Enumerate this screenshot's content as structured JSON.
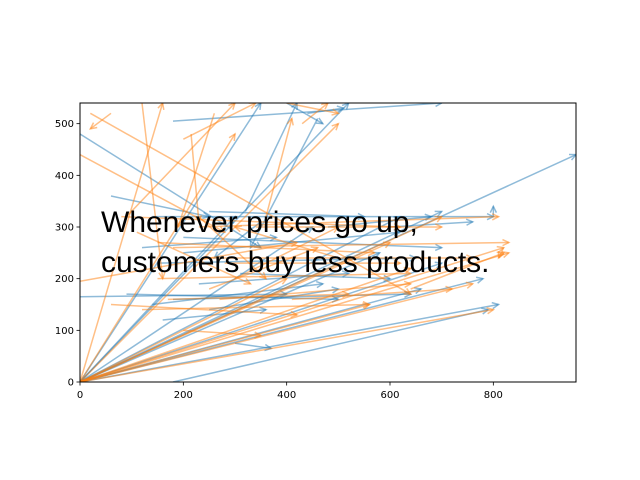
{
  "chart_data": {
    "type": "line",
    "title": "",
    "xlabel": "",
    "ylabel": "",
    "xlim": [
      0,
      960
    ],
    "ylim": [
      0,
      540
    ],
    "x_ticks": [
      0,
      200,
      400,
      600,
      800
    ],
    "y_ticks": [
      0,
      100,
      200,
      300,
      400,
      500
    ],
    "grid": false,
    "annotation": {
      "lines": [
        "Whenever prices go up,",
        "customers buy less products."
      ],
      "color": "#000000"
    },
    "series": [
      {
        "color": "#1f77b4",
        "alpha": 0.5,
        "segments": [
          [
            [
              0,
              0
            ],
            [
              960,
              440
            ]
          ],
          [
            [
              0,
              0
            ],
            [
              520,
              540
            ]
          ],
          [
            [
              0,
              0
            ],
            [
              780,
              200
            ]
          ],
          [
            [
              0,
              0
            ],
            [
              700,
              330
            ]
          ],
          [
            [
              0,
              0
            ],
            [
              810,
              150
            ]
          ],
          [
            [
              0,
              0
            ],
            [
              350,
              540
            ]
          ],
          [
            [
              0,
              0
            ],
            [
              620,
              320
            ]
          ],
          [
            [
              0,
              0
            ],
            [
              660,
              180
            ]
          ],
          [
            [
              0,
              0
            ],
            [
              580,
              250
            ]
          ],
          [
            [
              0,
              0
            ],
            [
              700,
              230
            ]
          ],
          [
            [
              0,
              0
            ],
            [
              450,
              300
            ]
          ],
          [
            [
              0,
              0
            ],
            [
              300,
              320
            ]
          ],
          [
            [
              180,
              0
            ],
            [
              790,
              140
            ]
          ],
          [
            [
              0,
              165
            ],
            [
              400,
              170
            ]
          ],
          [
            [
              0,
              480
            ],
            [
              350,
              260
            ]
          ],
          [
            [
              180,
              505
            ],
            [
              700,
              540
            ]
          ],
          [
            [
              60,
              360
            ],
            [
              250,
              320
            ]
          ],
          [
            [
              140,
              320
            ],
            [
              800,
              320
            ]
          ],
          [
            [
              200,
              280
            ],
            [
              700,
              260
            ]
          ],
          [
            [
              150,
              230
            ],
            [
              650,
              240
            ]
          ],
          [
            [
              180,
              160
            ],
            [
              640,
              170
            ]
          ],
          [
            [
              400,
              540
            ],
            [
              470,
              500
            ]
          ],
          [
            [
              440,
              520
            ],
            [
              510,
              530
            ]
          ],
          [
            [
              320,
              330
            ],
            [
              420,
              540
            ]
          ],
          [
            [
              250,
              140
            ],
            [
              500,
              180
            ]
          ],
          [
            [
              460,
              510
            ],
            [
              330,
              260
            ]
          ],
          [
            [
              800,
              320
            ],
            [
              800,
              340
            ]
          ],
          [
            [
              230,
              190
            ],
            [
              520,
              210
            ]
          ],
          [
            [
              310,
              210
            ],
            [
              600,
              200
            ]
          ],
          [
            [
              120,
              260
            ],
            [
              380,
              280
            ]
          ],
          [
            [
              90,
              170
            ],
            [
              500,
              160
            ]
          ],
          [
            [
              300,
              75
            ],
            [
              370,
              65
            ]
          ],
          [
            [
              140,
              150
            ],
            [
              470,
              190
            ]
          ],
          [
            [
              600,
              300
            ],
            [
              760,
              310
            ]
          ],
          [
            [
              350,
              310
            ],
            [
              260,
              240
            ]
          ],
          [
            [
              200,
              250
            ],
            [
              620,
              290
            ]
          ],
          [
            [
              480,
              300
            ],
            [
              680,
              320
            ]
          ],
          [
            [
              160,
              120
            ],
            [
              360,
              140
            ]
          ],
          [
            [
              250,
              330
            ],
            [
              550,
              320
            ]
          ]
        ]
      },
      {
        "color": "#ff7f0e",
        "alpha": 0.5,
        "segments": [
          [
            [
              0,
              0
            ],
            [
              820,
              260
            ]
          ],
          [
            [
              0,
              0
            ],
            [
              800,
              140
            ]
          ],
          [
            [
              0,
              0
            ],
            [
              830,
              250
            ]
          ],
          [
            [
              0,
              0
            ],
            [
              640,
              220
            ]
          ],
          [
            [
              0,
              0
            ],
            [
              500,
              500
            ]
          ],
          [
            [
              0,
              0
            ],
            [
              700,
              320
            ]
          ],
          [
            [
              0,
              0
            ],
            [
              600,
              270
            ]
          ],
          [
            [
              0,
              0
            ],
            [
              760,
              190
            ]
          ],
          [
            [
              0,
              0
            ],
            [
              160,
              540
            ]
          ],
          [
            [
              0,
              0
            ],
            [
              400,
              200
            ]
          ],
          [
            [
              0,
              0
            ],
            [
              560,
              150
            ]
          ],
          [
            [
              0,
              0
            ],
            [
              300,
              480
            ]
          ],
          [
            [
              0,
              195
            ],
            [
              420,
              270
            ]
          ],
          [
            [
              0,
              440
            ],
            [
              280,
              290
            ]
          ],
          [
            [
              20,
              520
            ],
            [
              640,
              170
            ]
          ],
          [
            [
              120,
              540
            ],
            [
              160,
              200
            ]
          ],
          [
            [
              200,
              470
            ],
            [
              340,
              540
            ]
          ],
          [
            [
              215,
              480
            ],
            [
              230,
              310
            ]
          ],
          [
            [
              80,
              320
            ],
            [
              620,
              300
            ]
          ],
          [
            [
              230,
              300
            ],
            [
              810,
              320
            ]
          ],
          [
            [
              180,
              260
            ],
            [
              830,
              270
            ]
          ],
          [
            [
              240,
              240
            ],
            [
              760,
              240
            ]
          ],
          [
            [
              150,
              200
            ],
            [
              640,
              210
            ]
          ],
          [
            [
              170,
              160
            ],
            [
              520,
              170
            ]
          ],
          [
            [
              120,
              140
            ],
            [
              560,
              150
            ]
          ],
          [
            [
              60,
              150
            ],
            [
              420,
              130
            ]
          ],
          [
            [
              90,
              320
            ],
            [
              300,
              540
            ]
          ],
          [
            [
              400,
              540
            ],
            [
              500,
              520
            ]
          ],
          [
            [
              430,
              500
            ],
            [
              480,
              540
            ]
          ],
          [
            [
              360,
              320
            ],
            [
              410,
              510
            ]
          ],
          [
            [
              260,
              520
            ],
            [
              190,
              300
            ]
          ],
          [
            [
              640,
              180
            ],
            [
              820,
              250
            ]
          ],
          [
            [
              820,
              260
            ],
            [
              810,
              240
            ]
          ],
          [
            [
              60,
              520
            ],
            [
              20,
              490
            ]
          ],
          [
            [
              300,
              200
            ],
            [
              500,
              300
            ]
          ],
          [
            [
              110,
              290
            ],
            [
              330,
              190
            ]
          ],
          [
            [
              340,
              300
            ],
            [
              700,
              300
            ]
          ],
          [
            [
              250,
              180
            ],
            [
              460,
              260
            ]
          ],
          [
            [
              200,
              100
            ],
            [
              350,
              90
            ]
          ],
          [
            [
              280,
              230
            ],
            [
              620,
              230
            ]
          ],
          [
            [
              150,
              270
            ],
            [
              570,
              250
            ]
          ],
          [
            [
              410,
              160
            ],
            [
              720,
              180
            ]
          ],
          [
            [
              230,
              320
            ],
            [
              360,
              200
            ]
          ],
          [
            [
              270,
              160
            ],
            [
              640,
              190
            ]
          ],
          [
            [
              500,
              240
            ],
            [
              300,
              300
            ]
          ]
        ]
      }
    ]
  }
}
